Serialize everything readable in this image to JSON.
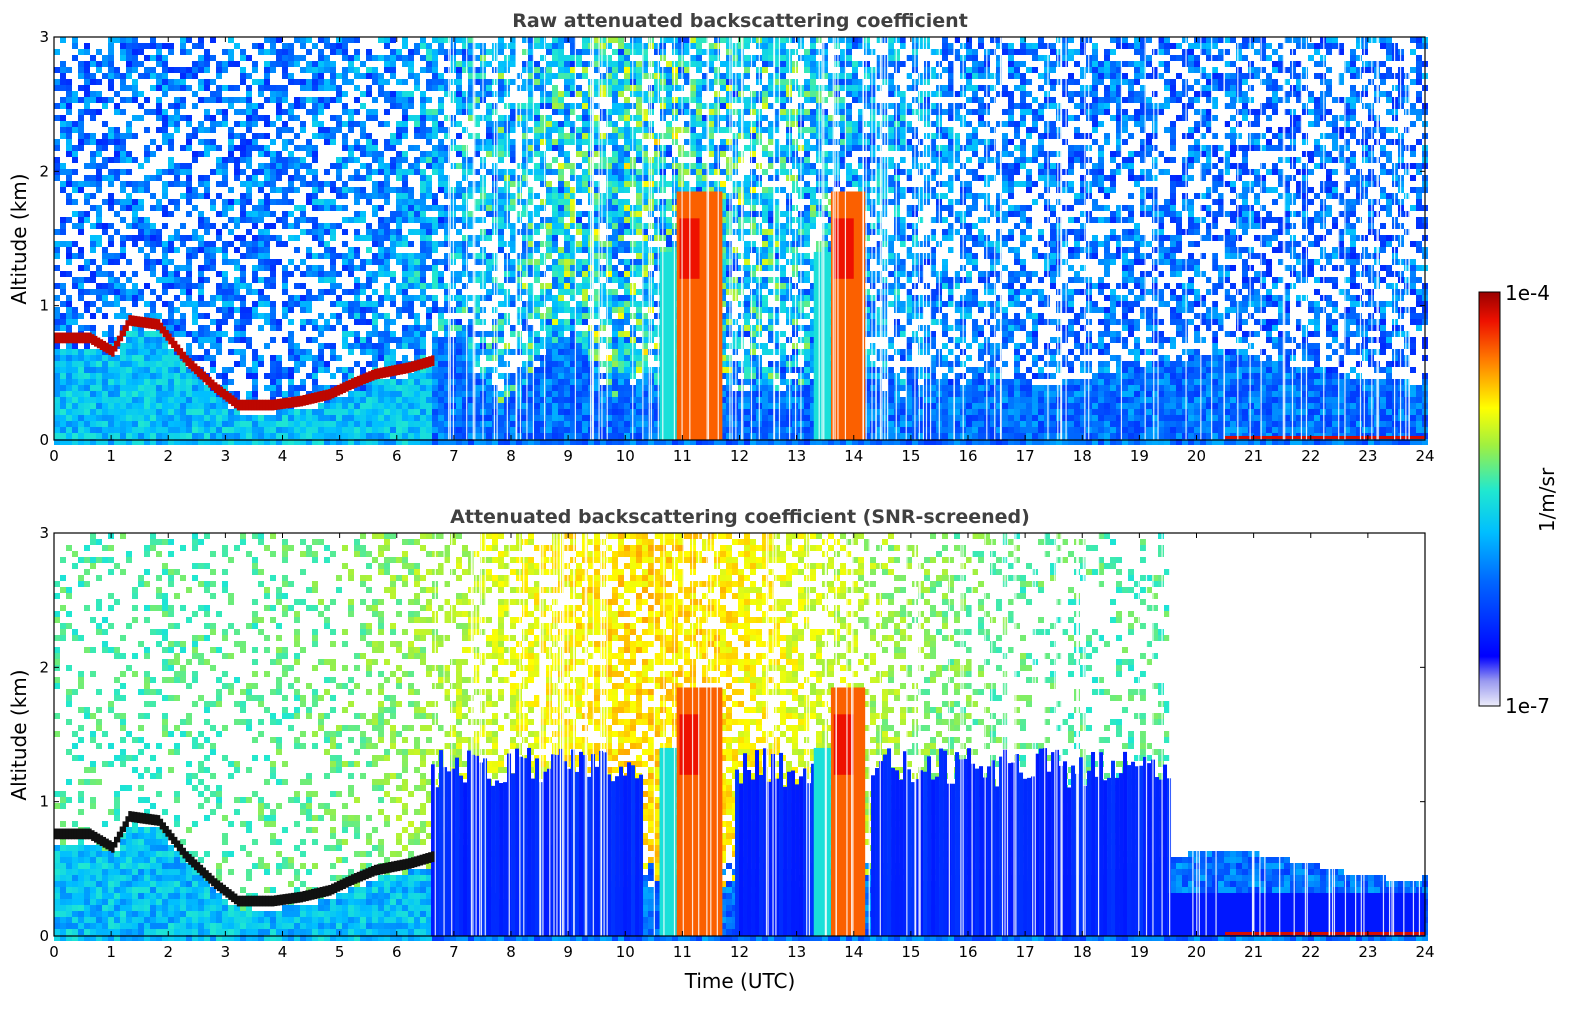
{
  "chart_data": [
    {
      "type": "heatmap",
      "title": "Raw attenuated backscattering coefficient",
      "xlabel": "",
      "ylabel": "Altitude (km)",
      "xlim": [
        0,
        24
      ],
      "ylim": [
        0,
        3
      ],
      "x_ticks": [
        "0",
        "1",
        "2",
        "3",
        "4",
        "5",
        "6",
        "7",
        "8",
        "9",
        "10",
        "11",
        "12",
        "13",
        "14",
        "15",
        "16",
        "17",
        "18",
        "19",
        "20",
        "21",
        "22",
        "23",
        "24"
      ],
      "y_ticks": [
        "0",
        "1",
        "2",
        "3"
      ],
      "features": [
        {
          "feature": "boundary layer aerosol top (strong)",
          "time_utc": [
            0.2,
            0.6,
            1.0,
            1.3,
            1.8,
            2.3,
            2.8,
            3.2,
            3.8,
            4.3,
            4.8,
            5.2,
            5.6,
            6.2,
            6.6
          ],
          "altitude_km": [
            0.72,
            0.72,
            0.62,
            0.85,
            0.82,
            0.55,
            0.35,
            0.22,
            0.22,
            0.25,
            0.3,
            0.38,
            0.45,
            0.5,
            0.55
          ]
        },
        {
          "feature": "cloud",
          "time_utc": [
            10.9,
            11.7
          ],
          "altitude_km": [
            0,
            1.8
          ],
          "level": "1e-4"
        },
        {
          "feature": "cloud",
          "time_utc": [
            13.6,
            14.2
          ],
          "altitude_km": [
            0,
            1.8
          ],
          "level": "1e-4"
        },
        {
          "feature": "surface layer (strong)",
          "time_utc": [
            20.5,
            24
          ],
          "altitude_km": [
            0,
            0.04
          ]
        }
      ]
    },
    {
      "type": "heatmap",
      "title": "Attenuated backscattering coefficient (SNR-screened)",
      "xlabel": "Time (UTC)",
      "ylabel": "Altitude (km)",
      "xlim": [
        0,
        24
      ],
      "ylim": [
        0,
        3
      ],
      "x_ticks": [
        "0",
        "1",
        "2",
        "3",
        "4",
        "5",
        "6",
        "7",
        "8",
        "9",
        "10",
        "11",
        "12",
        "13",
        "14",
        "15",
        "16",
        "17",
        "18",
        "19",
        "20",
        "21",
        "22",
        "23",
        "24"
      ],
      "y_ticks": [
        "0",
        "1",
        "2",
        "3"
      ],
      "features": [
        {
          "feature": "screened-out region above boundary layer",
          "time_utc": [
            19.5,
            24
          ],
          "altitude_km": [
            0.35,
            3
          ]
        },
        {
          "feature": "cloud",
          "time_utc": [
            10.9,
            11.7
          ],
          "altitude_km": [
            0,
            1.8
          ],
          "level": "1e-4"
        },
        {
          "feature": "cloud",
          "time_utc": [
            13.6,
            14.2
          ],
          "altitude_km": [
            0,
            1.8
          ],
          "level": "1e-4"
        }
      ]
    }
  ],
  "colorbar": {
    "label": "1/m/sr",
    "max_label": "1e-4",
    "min_label": "1e-7",
    "colormap": "jet",
    "colors": [
      "#e8e8f8",
      "#0000ff",
      "#00aaff",
      "#00ffcc",
      "#ffff00",
      "#ff6600",
      "#aa0000"
    ]
  }
}
